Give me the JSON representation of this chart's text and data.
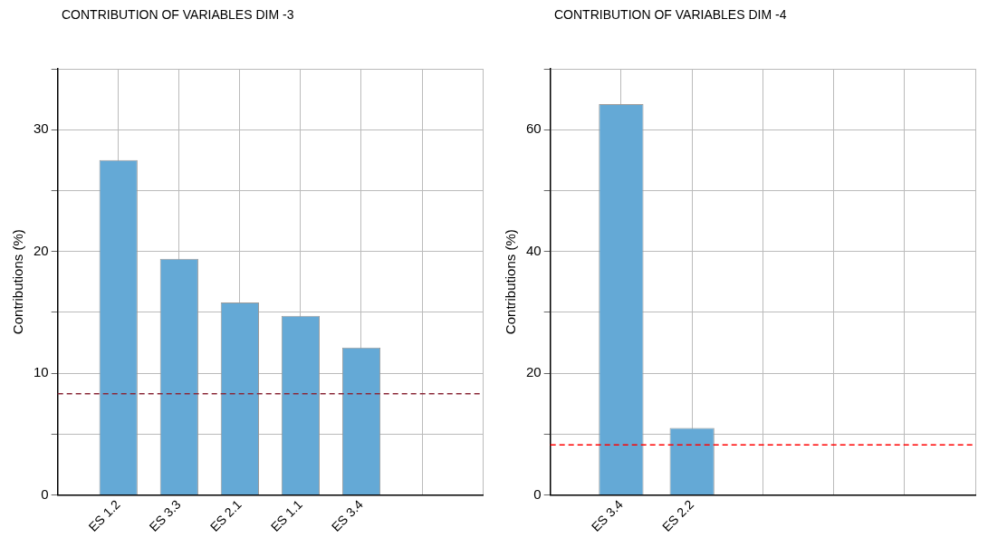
{
  "chart_data": [
    {
      "type": "bar",
      "title": "CONTRIBUTION OF VARIABLES DIM -3",
      "ylabel": "Contributions (%)",
      "categories": [
        null,
        "ES 1.2",
        "ES 3.3",
        "ES 2.1",
        "ES 1.1",
        "ES 3.4",
        null,
        null
      ],
      "values": [
        null,
        27.5,
        19.4,
        15.8,
        14.7,
        12.1,
        null,
        null
      ],
      "color": "#64a9d6",
      "ylim": [
        0,
        35
      ],
      "yticks": [
        0,
        {
          "value": 5,
          "label": null
        },
        10,
        {
          "value": 15,
          "label": null
        },
        20,
        {
          "value": 25,
          "label": null
        },
        30,
        {
          "value": 35,
          "label": null
        }
      ],
      "grid": true,
      "ref_lines": [
        {
          "axis": "y",
          "value": 8.3,
          "color": "#8b2a3a",
          "line_style": "dashed"
        }
      ]
    },
    {
      "type": "bar",
      "title": "CONTRIBUTION OF VARIABLES DIM -4",
      "ylabel": "Contributions (%)",
      "categories": [
        null,
        "ES 3.4",
        "ES 2.2",
        null,
        null,
        null,
        null
      ],
      "values": [
        null,
        64.2,
        11.0,
        null,
        null,
        null,
        null
      ],
      "color": "#64a9d6",
      "ylim": [
        0,
        70
      ],
      "yticks": [
        0,
        {
          "value": 10,
          "label": null
        },
        20,
        {
          "value": 30,
          "label": null
        },
        40,
        {
          "value": 50,
          "label": null
        },
        60,
        {
          "value": 70,
          "label": null
        }
      ],
      "grid": true,
      "ref_lines": [
        {
          "axis": "y",
          "value": 8.2,
          "color": "#ff0000",
          "line_style": "dashed"
        }
      ]
    }
  ]
}
